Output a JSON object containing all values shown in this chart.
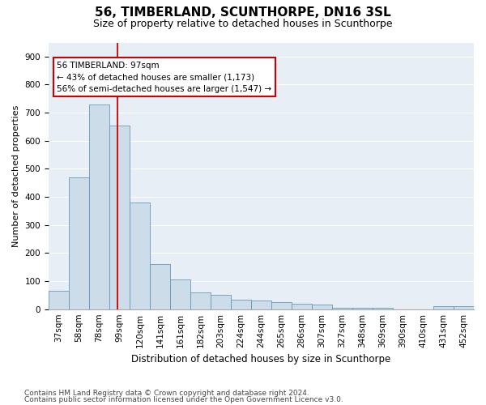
{
  "title": "56, TIMBERLAND, SCUNTHORPE, DN16 3SL",
  "subtitle": "Size of property relative to detached houses in Scunthorpe",
  "xlabel": "Distribution of detached houses by size in Scunthorpe",
  "ylabel": "Number of detached properties",
  "categories": [
    "37sqm",
    "58sqm",
    "78sqm",
    "99sqm",
    "120sqm",
    "141sqm",
    "161sqm",
    "182sqm",
    "203sqm",
    "224sqm",
    "244sqm",
    "265sqm",
    "286sqm",
    "307sqm",
    "327sqm",
    "348sqm",
    "369sqm",
    "390sqm",
    "410sqm",
    "431sqm",
    "452sqm"
  ],
  "values": [
    65,
    470,
    730,
    655,
    380,
    160,
    105,
    60,
    50,
    35,
    30,
    25,
    20,
    15,
    5,
    5,
    5,
    0,
    0,
    10,
    10
  ],
  "bar_color": "#ccdce8",
  "bar_edge_color": "#6699bb",
  "property_line_color": "#cc0000",
  "annotation_text": "56 TIMBERLAND: 97sqm\n← 43% of detached houses are smaller (1,173)\n56% of semi-detached houses are larger (1,547) →",
  "annotation_box_color": "#ffffff",
  "annotation_box_edge_color": "#cc0000",
  "ylim": [
    0,
    950
  ],
  "yticks": [
    0,
    100,
    200,
    300,
    400,
    500,
    600,
    700,
    800,
    900
  ],
  "background_color": "#e8eef5",
  "grid_color": "#ffffff",
  "footer_line1": "Contains HM Land Registry data © Crown copyright and database right 2024.",
  "footer_line2": "Contains public sector information licensed under the Open Government Licence v3.0.",
  "title_fontsize": 11,
  "subtitle_fontsize": 9,
  "xlabel_fontsize": 8.5,
  "ylabel_fontsize": 8,
  "tick_fontsize": 7.5,
  "annotation_fontsize": 7.5,
  "footer_fontsize": 6.5
}
